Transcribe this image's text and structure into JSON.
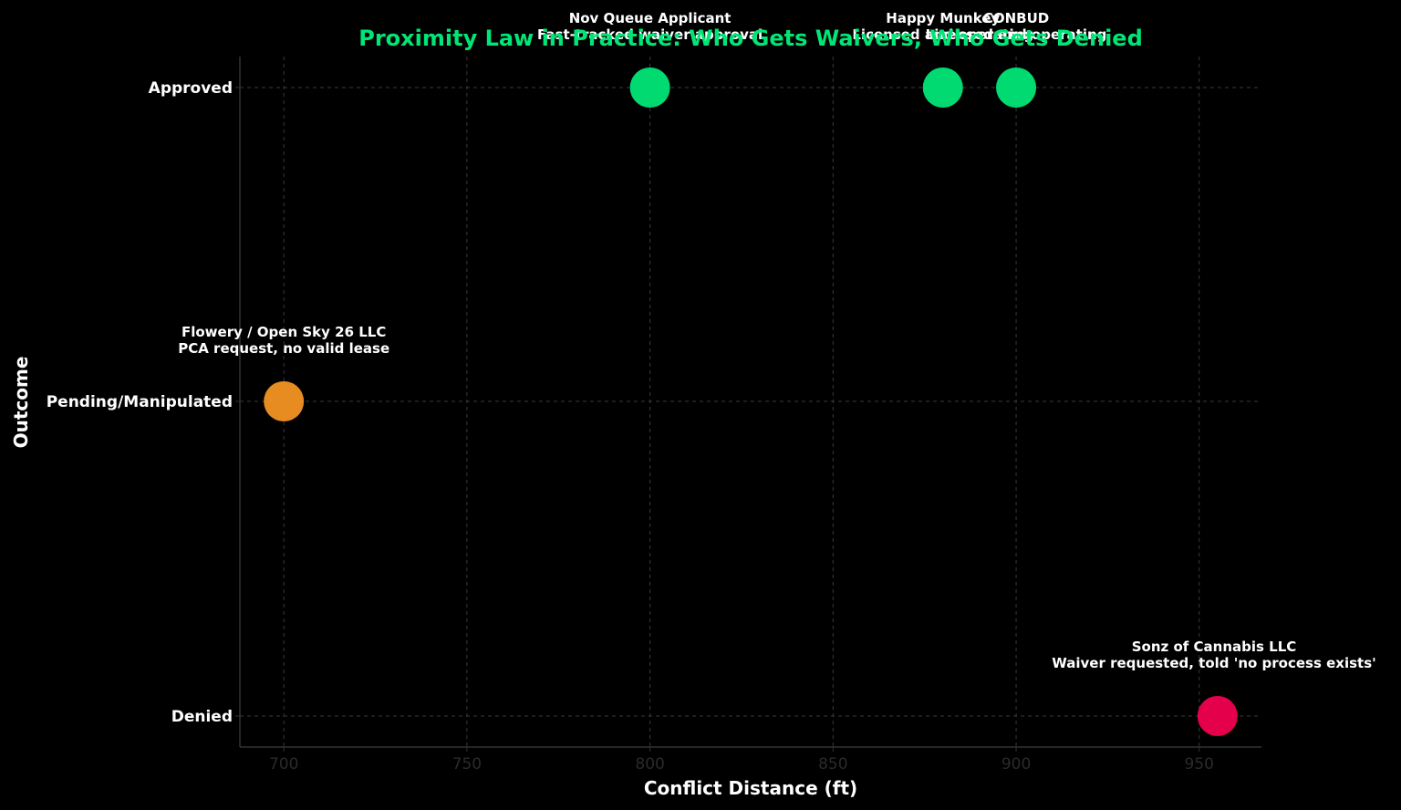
{
  "chart_data": {
    "type": "scatter",
    "title": "Proximity Law in Practice: Who Gets Waivers, Who Gets Denied",
    "xlabel": "Conflict Distance (ft)",
    "ylabel": "Outcome",
    "xlim": [
      688,
      967
    ],
    "x_ticks": [
      "700",
      "750",
      "800",
      "850",
      "900",
      "950"
    ],
    "y_categories": [
      "Denied",
      "Pending/Manipulated",
      "Approved"
    ],
    "grid": true,
    "colors": {
      "approved": "#00e676",
      "pending": "#f29423",
      "denied": "#f0004e",
      "title": "#00e676"
    },
    "points": [
      {
        "x": 800,
        "y": "Approved",
        "name": "Nov Queue Applicant",
        "note": "Fast-tracked waiver approval",
        "color": "#00e676"
      },
      {
        "x": 880,
        "y": "Approved",
        "name": "Happy Munkey",
        "note": "Licensed and operating",
        "color": "#00e676"
      },
      {
        "x": 900,
        "y": "Approved",
        "name": "CONBUD",
        "note": "Licensed and operating",
        "color": "#00e676"
      },
      {
        "x": 700,
        "y": "Pending/Manipulated",
        "name": "Flowery / Open Sky 26 LLC",
        "note": "PCA request, no valid lease",
        "color": "#f29423"
      },
      {
        "x": 955,
        "y": "Denied",
        "name": "Sonz of Cannabis LLC",
        "note": "Waiver requested, told 'no process exists'",
        "color": "#f0004e"
      }
    ]
  }
}
